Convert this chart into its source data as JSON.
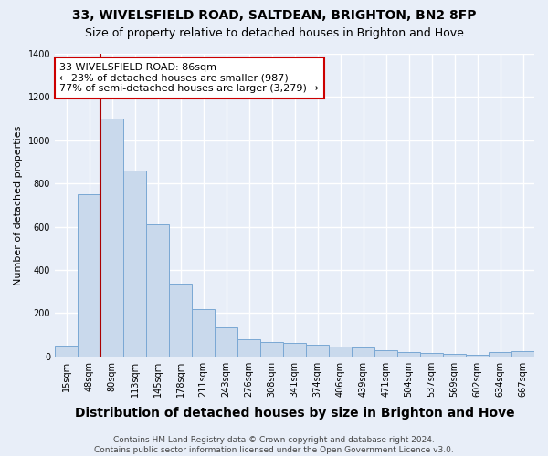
{
  "title": "33, WIVELSFIELD ROAD, SALTDEAN, BRIGHTON, BN2 8FP",
  "subtitle": "Size of property relative to detached houses in Brighton and Hove",
  "xlabel": "Distribution of detached houses by size in Brighton and Hove",
  "ylabel": "Number of detached properties",
  "footnote": "Contains HM Land Registry data © Crown copyright and database right 2024.\nContains public sector information licensed under the Open Government Licence v3.0.",
  "categories": [
    "15sqm",
    "48sqm",
    "80sqm",
    "113sqm",
    "145sqm",
    "178sqm",
    "211sqm",
    "243sqm",
    "276sqm",
    "308sqm",
    "341sqm",
    "374sqm",
    "406sqm",
    "439sqm",
    "471sqm",
    "504sqm",
    "537sqm",
    "569sqm",
    "602sqm",
    "634sqm",
    "667sqm"
  ],
  "values": [
    50,
    750,
    1100,
    860,
    610,
    335,
    220,
    135,
    80,
    65,
    60,
    55,
    45,
    40,
    30,
    20,
    15,
    10,
    5,
    20,
    25
  ],
  "bar_color": "#c9d9ec",
  "bar_edge_color": "#7aa8d4",
  "vline_index": 2,
  "vline_color": "#aa0000",
  "annotation_text": "33 WIVELSFIELD ROAD: 86sqm\n← 23% of detached houses are smaller (987)\n77% of semi-detached houses are larger (3,279) →",
  "annotation_box_color": "#cc0000",
  "ylim": [
    0,
    1400
  ],
  "yticks": [
    0,
    200,
    400,
    600,
    800,
    1000,
    1200,
    1400
  ],
  "background_color": "#e8eef8",
  "grid_color": "#ffffff",
  "title_fontsize": 10,
  "subtitle_fontsize": 9,
  "xlabel_fontsize": 10,
  "ylabel_fontsize": 8,
  "tick_fontsize": 7,
  "annotation_fontsize": 8,
  "footnote_fontsize": 6.5
}
